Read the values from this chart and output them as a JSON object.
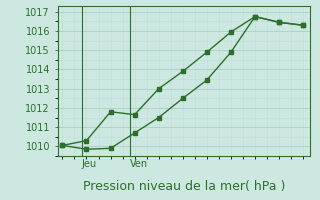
{
  "line1_x": [
    0,
    1,
    2,
    3,
    4,
    5,
    6,
    7,
    8,
    9,
    10
  ],
  "line1_y": [
    1010.05,
    1010.3,
    1011.8,
    1011.65,
    1013.0,
    1013.9,
    1014.9,
    1015.95,
    1016.75,
    1016.45,
    1016.3
  ],
  "line2_x": [
    0,
    1,
    2,
    3,
    4,
    5,
    6,
    7,
    8,
    9,
    10
  ],
  "line2_y": [
    1010.05,
    1009.85,
    1009.9,
    1010.7,
    1011.5,
    1012.5,
    1013.45,
    1014.9,
    1016.75,
    1016.45,
    1016.3
  ],
  "line_color": "#2d6e2d",
  "background_color": "#cce8e0",
  "grid_major_color": "#aacec8",
  "grid_minor_color": "#c0ddd8",
  "ylim": [
    1009.5,
    1017.3
  ],
  "yticks": [
    1010,
    1011,
    1012,
    1013,
    1014,
    1015,
    1016,
    1017
  ],
  "xlim": [
    -0.2,
    10.3
  ],
  "xlabel": "Pression niveau de la mer( hPa )",
  "vline1_x": 0.8,
  "vline2_x": 2.8,
  "jeu_x": 0.8,
  "ven_x": 2.8,
  "axis_color": "#2d6e2d",
  "tick_fontsize": 7,
  "xlabel_fontsize": 9
}
